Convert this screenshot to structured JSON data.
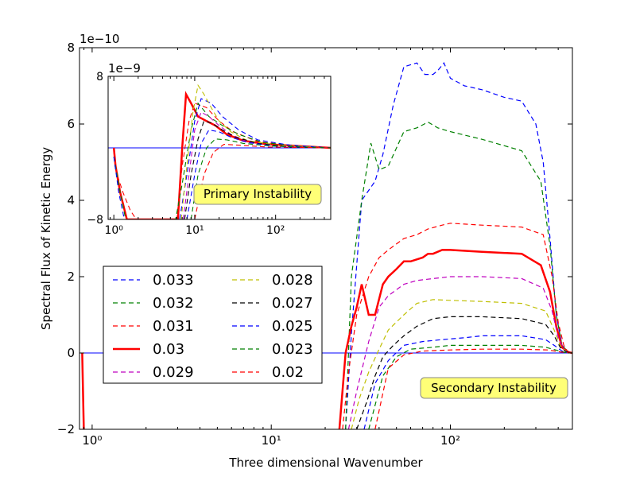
{
  "chart_data": {
    "type": "line",
    "xscale": "log",
    "xlabel": "Three dimensional Wavenumber",
    "ylabel": "Spectral Flux of Kinetic Energy",
    "xlim": [
      0.85,
      480
    ],
    "ylim": [
      -2,
      8
    ],
    "y_multiplier": "1e−10",
    "x_tick_labels": [
      "10⁰",
      "10¹",
      "10²"
    ],
    "y_tick_labels": [
      "−2",
      "0",
      "2",
      "4",
      "6",
      "8"
    ],
    "annotation": "Secondary Instability",
    "series": [
      {
        "name": "0.033",
        "color": "#0000ff",
        "style": "dashed",
        "x": [
          26,
          28,
          32,
          38,
          42,
          48,
          55,
          65,
          72,
          80,
          85,
          92,
          100,
          120,
          150,
          200,
          250,
          300,
          330,
          360,
          390,
          420,
          450,
          480
        ],
        "y": [
          -2,
          0.5,
          4.0,
          4.5,
          5.2,
          6.5,
          7.5,
          7.6,
          7.3,
          7.3,
          7.4,
          7.6,
          7.2,
          7.0,
          6.9,
          6.7,
          6.6,
          6.0,
          5.0,
          3.0,
          1.0,
          0.2,
          0.05,
          0
        ]
      },
      {
        "name": "0.032",
        "color": "#008000",
        "style": "dashed",
        "x": [
          26,
          28,
          32,
          36,
          40,
          45,
          55,
          65,
          75,
          85,
          100,
          150,
          250,
          320,
          360,
          390,
          420,
          450,
          480
        ],
        "y": [
          -2,
          2.0,
          4.0,
          5.5,
          4.8,
          4.9,
          5.8,
          5.9,
          6.05,
          5.9,
          5.8,
          5.6,
          5.3,
          4.5,
          2.8,
          1.0,
          0.2,
          0.05,
          0
        ]
      },
      {
        "name": "0.031",
        "color": "#ff0000",
        "style": "dashed",
        "x": [
          25,
          27,
          30,
          35,
          40,
          45,
          55,
          65,
          75,
          90,
          100,
          150,
          250,
          330,
          370,
          400,
          430,
          450,
          480
        ],
        "y": [
          -2,
          -0.5,
          1.0,
          2.0,
          2.5,
          2.7,
          3.0,
          3.1,
          3.25,
          3.35,
          3.4,
          3.35,
          3.3,
          3.1,
          2.0,
          0.8,
          0.2,
          0.05,
          0
        ]
      },
      {
        "name": "0.03",
        "color": "#ff0000",
        "style": "solid",
        "x": [
          24,
          26,
          28,
          30,
          32,
          35,
          38,
          42,
          45,
          50,
          55,
          60,
          70,
          75,
          80,
          90,
          100,
          150,
          250,
          320,
          360,
          390,
          420,
          450,
          480
        ],
        "y": [
          -2,
          0,
          0.7,
          1.2,
          1.8,
          1.0,
          1.0,
          1.8,
          2.0,
          2.2,
          2.4,
          2.4,
          2.5,
          2.6,
          2.6,
          2.7,
          2.7,
          2.65,
          2.6,
          2.3,
          1.6,
          0.7,
          0.15,
          0.03,
          0
        ]
      },
      {
        "name": "0.029",
        "color": "#bf00bf",
        "style": "dashed",
        "x": [
          27,
          30,
          35,
          40,
          45,
          55,
          65,
          80,
          100,
          150,
          250,
          330,
          370,
          400,
          430,
          450,
          480
        ],
        "y": [
          -2,
          -1.0,
          0.3,
          1.2,
          1.5,
          1.8,
          1.9,
          1.95,
          2.0,
          2.0,
          1.95,
          1.7,
          1.1,
          0.4,
          0.1,
          0.03,
          0
        ]
      },
      {
        "name": "0.028",
        "color": "#bfbf00",
        "style": "dashed",
        "x": [
          28,
          31,
          35,
          40,
          45,
          55,
          65,
          80,
          100,
          150,
          250,
          340,
          380,
          410,
          440,
          460,
          480
        ],
        "y": [
          -2,
          -1.2,
          -0.5,
          0.1,
          0.6,
          1.0,
          1.3,
          1.4,
          1.38,
          1.35,
          1.3,
          1.1,
          0.6,
          0.2,
          0.05,
          0.02,
          0
        ]
      },
      {
        "name": "0.027",
        "color": "#000000",
        "style": "dashed",
        "x": [
          30,
          34,
          38,
          42,
          48,
          55,
          65,
          80,
          100,
          150,
          250,
          340,
          380,
          410,
          440,
          460,
          480
        ],
        "y": [
          -2,
          -1.3,
          -0.6,
          -0.1,
          0.2,
          0.45,
          0.7,
          0.9,
          0.95,
          0.95,
          0.9,
          0.75,
          0.45,
          0.15,
          0.04,
          0.01,
          0
        ]
      },
      {
        "name": "0.025",
        "color": "#0000ff",
        "style": "dashed",
        "x": [
          33,
          38,
          45,
          55,
          70,
          90,
          120,
          150,
          250,
          340,
          380,
          420,
          450,
          480
        ],
        "y": [
          -2,
          -0.8,
          -0.2,
          0.2,
          0.3,
          0.35,
          0.4,
          0.45,
          0.45,
          0.35,
          0.2,
          0.05,
          0.01,
          0
        ]
      },
      {
        "name": "0.023",
        "color": "#008000",
        "style": "dashed",
        "x": [
          35,
          42,
          50,
          60,
          80,
          100,
          150,
          250,
          340,
          400,
          440,
          480
        ],
        "y": [
          -2,
          -0.6,
          -0.1,
          0.1,
          0.15,
          0.2,
          0.2,
          0.2,
          0.15,
          0.06,
          0.01,
          0
        ]
      },
      {
        "name": "0.02",
        "color": "#ff0000",
        "style": "dashed",
        "x": [
          38,
          45,
          55,
          70,
          100,
          150,
          250,
          350,
          420,
          480
        ],
        "y": [
          -2,
          -0.4,
          -0.05,
          0.05,
          0.08,
          0.1,
          0.1,
          0.08,
          0.02,
          0
        ]
      }
    ],
    "reference_line": {
      "y": 0,
      "color": "#0000ff"
    },
    "inset": {
      "xscale": "log",
      "xlim": [
        0.85,
        480
      ],
      "ylim": [
        -8,
        8
      ],
      "y_multiplier": "1e−9",
      "x_tick_labels": [
        "10⁰",
        "10¹",
        "10²"
      ],
      "y_tick_labels": [
        "−8",
        "8"
      ],
      "annotation": "Primary Instability",
      "reference_y": 0,
      "series": [
        {
          "ref": "0.03",
          "color": "#ff0000",
          "style": "solid",
          "x": [
            1.0,
            1.05,
            1.2,
            1.45,
            6.2,
            7.0,
            7.8,
            9,
            11,
            14,
            18,
            25,
            40,
            80,
            200,
            480
          ],
          "y": [
            0,
            -2,
            -5,
            -8,
            -8,
            0,
            6,
            5,
            3.5,
            3,
            2.5,
            1.5,
            0.8,
            0.4,
            0.2,
            0
          ]
        },
        {
          "ref": "0.031",
          "color": "#ff0000",
          "style": "dashed",
          "x": [
            1.0,
            1.1,
            1.3,
            1.6,
            1.9,
            6.0,
            7,
            8.5,
            10,
            14,
            20,
            30,
            60,
            150,
            480
          ],
          "y": [
            -0.5,
            -3,
            -5,
            -7,
            -8,
            -8,
            -2,
            3,
            5,
            4.5,
            3,
            1.8,
            0.7,
            0.3,
            0
          ]
        },
        {
          "ref": "0.032",
          "color": "#008000",
          "style": "dashed",
          "x": [
            1.0,
            1.2,
            1.4,
            5.8,
            7,
            9,
            11,
            15,
            22,
            35,
            70,
            200,
            480
          ],
          "y": [
            -1,
            -5,
            -8,
            -8,
            -4,
            2,
            5,
            3.5,
            2.5,
            1.5,
            0.6,
            0.2,
            0
          ]
        },
        {
          "ref": "0.033",
          "color": "#0000ff",
          "style": "dashed",
          "x": [
            1.0,
            1.15,
            1.35,
            6.5,
            8,
            10,
            12,
            16,
            22,
            35,
            60,
            150,
            480
          ],
          "y": [
            -1,
            -5,
            -8,
            -8,
            -3,
            3,
            5.5,
            5,
            3.5,
            2,
            0.9,
            0.3,
            0
          ]
        },
        {
          "ref": "0.028",
          "color": "#bfbf00",
          "style": "dashed",
          "x": [
            6.8,
            8,
            9.5,
            11,
            13,
            16,
            20,
            28,
            45,
            100,
            300,
            480
          ],
          "y": [
            -8,
            -2,
            4,
            7,
            6,
            4.5,
            3,
            1.8,
            0.8,
            0.3,
            0.1,
            0
          ]
        },
        {
          "ref": "0.029",
          "color": "#bf00bf",
          "style": "dashed",
          "x": [
            7.2,
            8.5,
            10,
            12,
            15,
            20,
            28,
            45,
            100,
            480
          ],
          "y": [
            -8,
            -3,
            2,
            4,
            3.5,
            2.5,
            1.5,
            0.7,
            0.2,
            0
          ]
        },
        {
          "ref": "0.027",
          "color": "#000000",
          "style": "dashed",
          "x": [
            7.5,
            9,
            11,
            13,
            16,
            22,
            32,
            60,
            150,
            480
          ],
          "y": [
            -8,
            -3,
            1,
            3,
            2.8,
            2,
            1.2,
            0.5,
            0.1,
            0
          ]
        },
        {
          "ref": "0.025",
          "color": "#0000ff",
          "style": "dashed",
          "x": [
            8,
            10,
            12,
            15,
            20,
            28,
            45,
            100,
            480
          ],
          "y": [
            -8,
            -3,
            0.5,
            2,
            1.8,
            1.2,
            0.6,
            0.2,
            0
          ]
        },
        {
          "ref": "0.023",
          "color": "#008000",
          "style": "dashed",
          "x": [
            9,
            11,
            14,
            18,
            25,
            40,
            90,
            480
          ],
          "y": [
            -8,
            -3,
            0,
            1,
            0.9,
            0.5,
            0.2,
            0
          ]
        },
        {
          "ref": "0.02",
          "color": "#ff0000",
          "style": "dashed",
          "x": [
            10,
            13,
            17,
            23,
            35,
            80,
            480
          ],
          "y": [
            -8,
            -3,
            -0.5,
            0.4,
            0.3,
            0.1,
            0
          ]
        }
      ]
    }
  }
}
